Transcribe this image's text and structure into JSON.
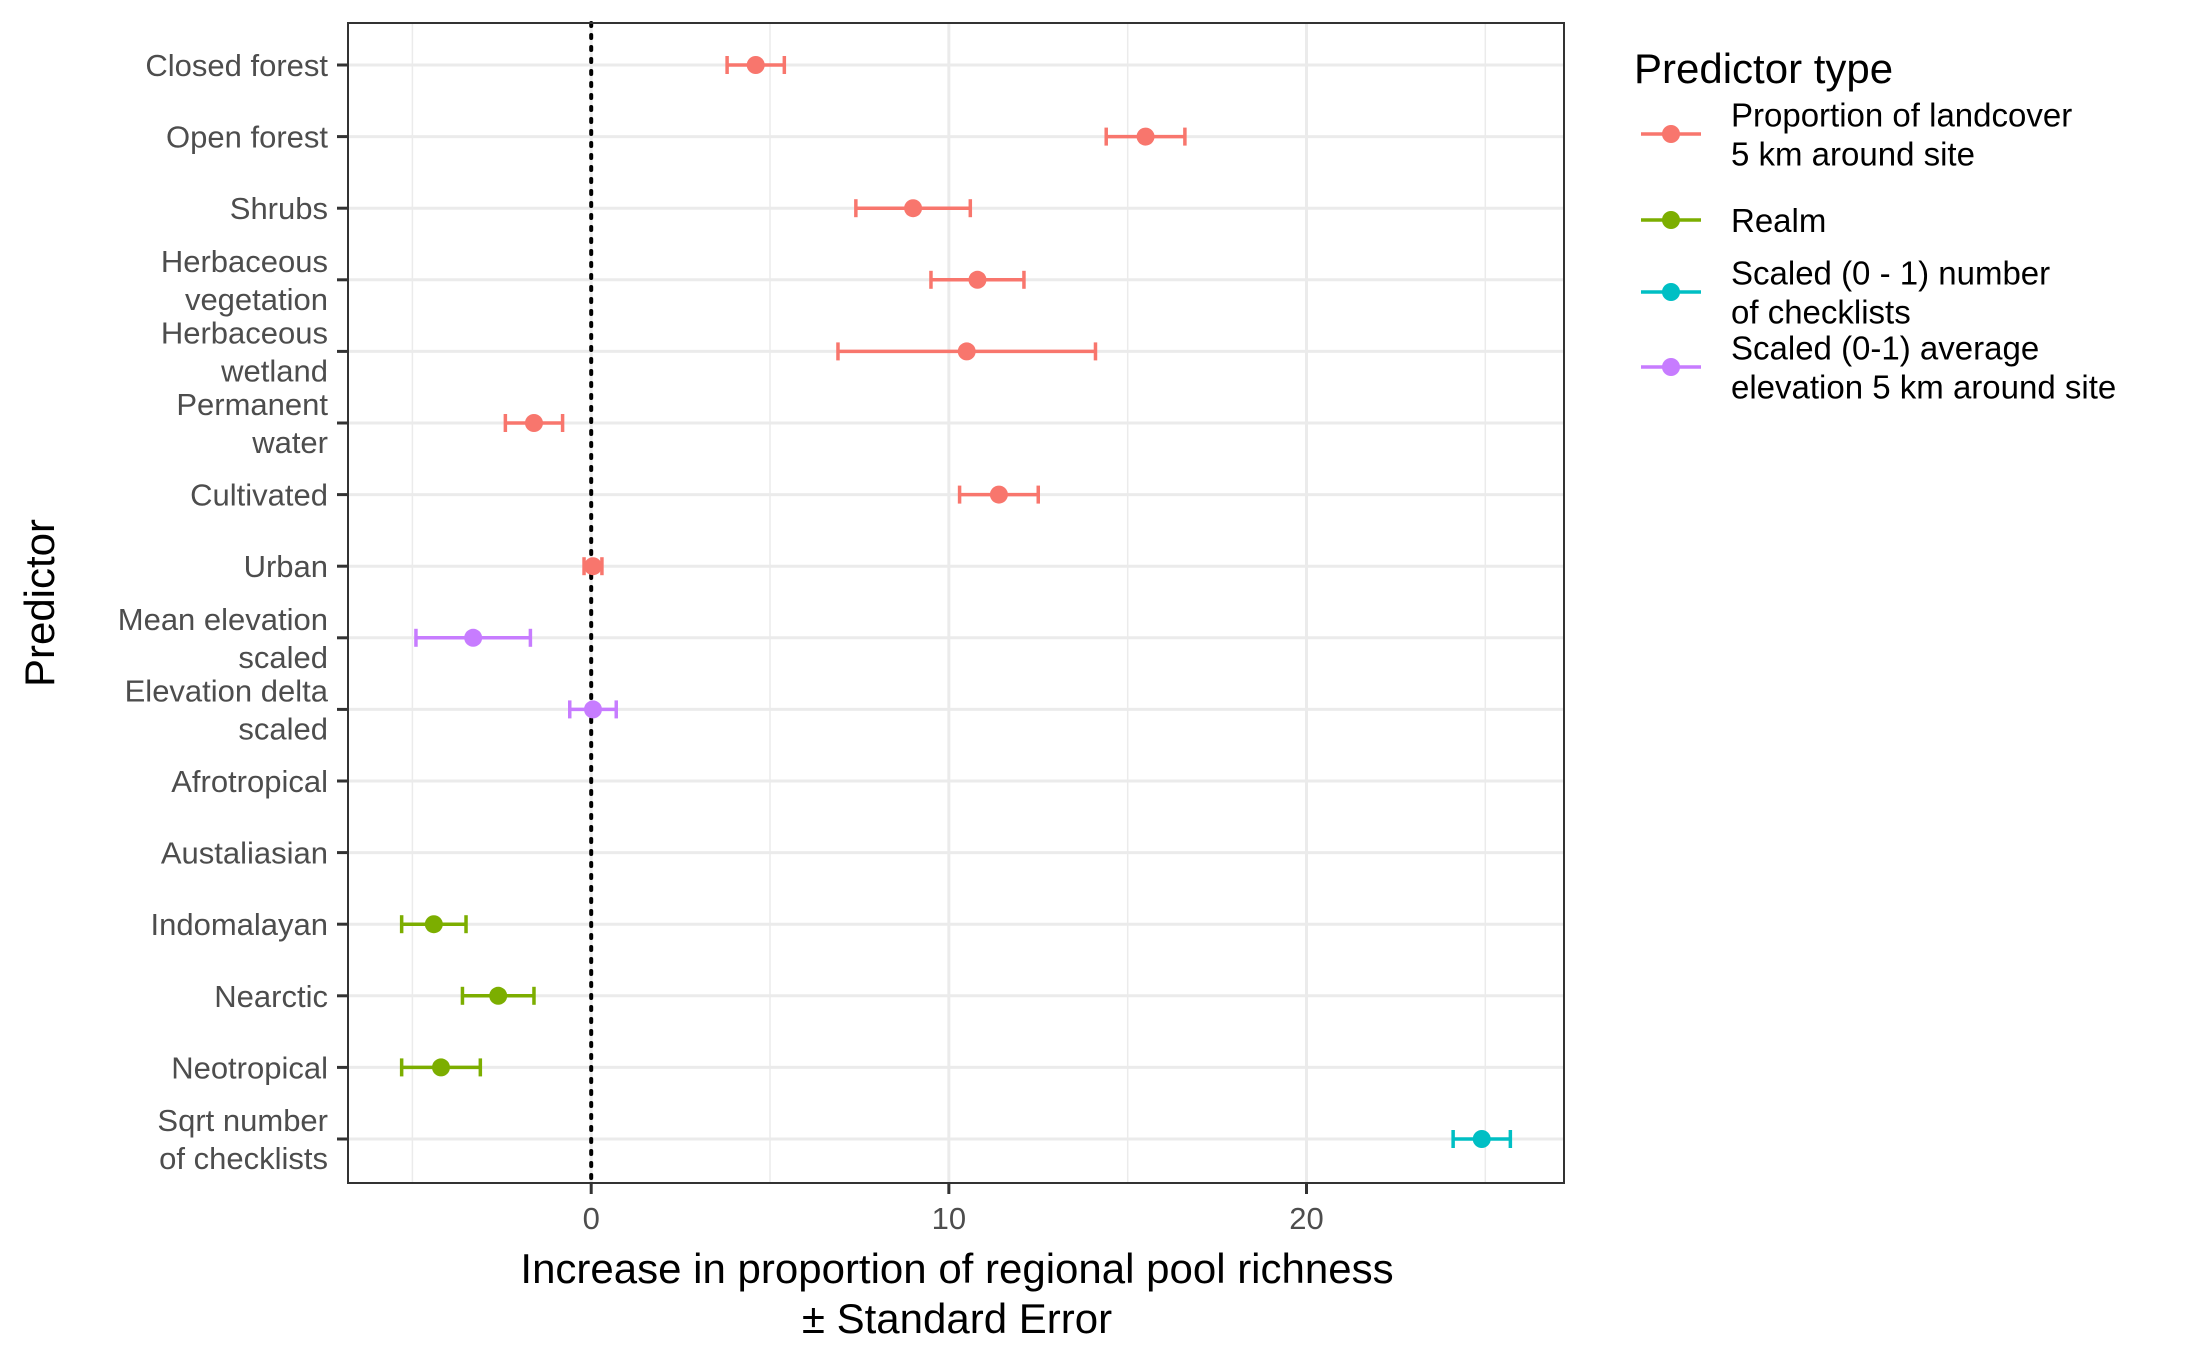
{
  "chart_data": {
    "type": "scatter",
    "subtype": "coefficient-plot-with-error-bars",
    "xlabel_lines": [
      "Increase in proportion of regional pool richness",
      "± Standard Error"
    ],
    "ylabel": "Predictor",
    "xlim": [
      -6.8,
      27.2
    ],
    "xticks": [
      0,
      10,
      20
    ],
    "grid": true,
    "reference_line": {
      "x": 0,
      "style": "dotted"
    },
    "legend": {
      "title": "Predictor type",
      "position": "right",
      "entries": [
        {
          "key": "landcover",
          "lines": [
            "Proportion of landcover",
            "5 km around site"
          ],
          "color": "#F8766D"
        },
        {
          "key": "realm",
          "lines": [
            "Realm"
          ],
          "color": "#7CAE00"
        },
        {
          "key": "checklists",
          "lines": [
            "Scaled (0 - 1) number",
            "of checklists"
          ],
          "color": "#00BFC4"
        },
        {
          "key": "elevation",
          "lines": [
            "Scaled (0-1) average",
            "elevation 5 km around site"
          ],
          "color": "#C77CFF"
        }
      ]
    },
    "categories": [
      {
        "lines": [
          "Closed forest"
        ],
        "group": "landcover",
        "estimate": 4.6,
        "lower": 3.8,
        "upper": 5.4
      },
      {
        "lines": [
          "Open forest"
        ],
        "group": "landcover",
        "estimate": 15.5,
        "lower": 14.4,
        "upper": 16.6
      },
      {
        "lines": [
          "Shrubs"
        ],
        "group": "landcover",
        "estimate": 9.0,
        "lower": 7.4,
        "upper": 10.6
      },
      {
        "lines": [
          "Herbaceous",
          "vegetation"
        ],
        "group": "landcover",
        "estimate": 10.8,
        "lower": 9.5,
        "upper": 12.1
      },
      {
        "lines": [
          "Herbaceous",
          "wetland"
        ],
        "group": "landcover",
        "estimate": 10.5,
        "lower": 6.9,
        "upper": 14.1
      },
      {
        "lines": [
          "Permanent",
          "water"
        ],
        "group": "landcover",
        "estimate": -1.6,
        "lower": -2.4,
        "upper": -0.8
      },
      {
        "lines": [
          "Cultivated"
        ],
        "group": "landcover",
        "estimate": 11.4,
        "lower": 10.3,
        "upper": 12.5
      },
      {
        "lines": [
          "Urban"
        ],
        "group": "landcover",
        "estimate": 0.05,
        "lower": -0.2,
        "upper": 0.3
      },
      {
        "lines": [
          "Mean elevation",
          "scaled"
        ],
        "group": "elevation",
        "estimate": -3.3,
        "lower": -4.9,
        "upper": -1.7
      },
      {
        "lines": [
          "Elevation delta",
          "scaled"
        ],
        "group": "elevation",
        "estimate": 0.05,
        "lower": -0.6,
        "upper": 0.7
      },
      {
        "lines": [
          "Afrotropical"
        ],
        "group": "realm",
        "estimate": null,
        "lower": null,
        "upper": null
      },
      {
        "lines": [
          "Austaliasian"
        ],
        "group": "realm",
        "estimate": null,
        "lower": null,
        "upper": null
      },
      {
        "lines": [
          "Indomalayan"
        ],
        "group": "realm",
        "estimate": -4.4,
        "lower": -5.3,
        "upper": -3.5
      },
      {
        "lines": [
          "Nearctic"
        ],
        "group": "realm",
        "estimate": -2.6,
        "lower": -3.6,
        "upper": -1.6
      },
      {
        "lines": [
          "Neotropical"
        ],
        "group": "realm",
        "estimate": -4.2,
        "lower": -5.3,
        "upper": -3.1
      },
      {
        "lines": [
          "Sqrt number",
          "of checklists"
        ],
        "group": "checklists",
        "estimate": 24.9,
        "lower": 24.1,
        "upper": 25.7
      }
    ]
  }
}
